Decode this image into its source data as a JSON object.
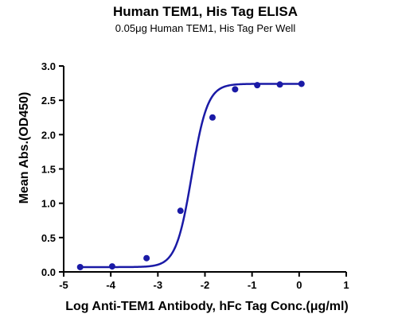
{
  "chart_data": {
    "type": "scatter",
    "title": "Human TEM1, His Tag ELISA",
    "subtitle": "0.05μg Human TEM1, His Tag Per Well",
    "xlabel": "Log Anti-TEM1 Antibody, hFc Tag Conc.(μg/ml)",
    "ylabel": "Mean Abs.(OD450)",
    "xlim": [
      -5,
      1
    ],
    "ylim": [
      0,
      3
    ],
    "x_ticks": [
      -5,
      -4,
      -3,
      -2,
      -1,
      0,
      1
    ],
    "x_tick_labels": [
      "-5",
      "-4",
      "-3",
      "-2",
      "-1",
      "0",
      "1"
    ],
    "y_ticks": [
      0,
      0.5,
      1,
      1.5,
      2,
      2.5,
      3
    ],
    "y_tick_labels": [
      "0.0",
      "0.5",
      "1.0",
      "1.5",
      "2.0",
      "2.5",
      "3.0"
    ],
    "grid": false,
    "series": [
      {
        "color": "#1a1aa6",
        "x": [
          -4.65,
          -3.97,
          -3.24,
          -2.52,
          -1.84,
          -1.36,
          -0.89,
          -0.41,
          0.05
        ],
        "y": [
          0.07,
          0.08,
          0.2,
          0.89,
          2.25,
          2.66,
          2.72,
          2.73,
          2.74
        ],
        "fit": {
          "model": "4PL",
          "bottom": 0.07,
          "top": 2.74,
          "logEC50": -2.28,
          "hill": 2.6
        }
      }
    ]
  }
}
